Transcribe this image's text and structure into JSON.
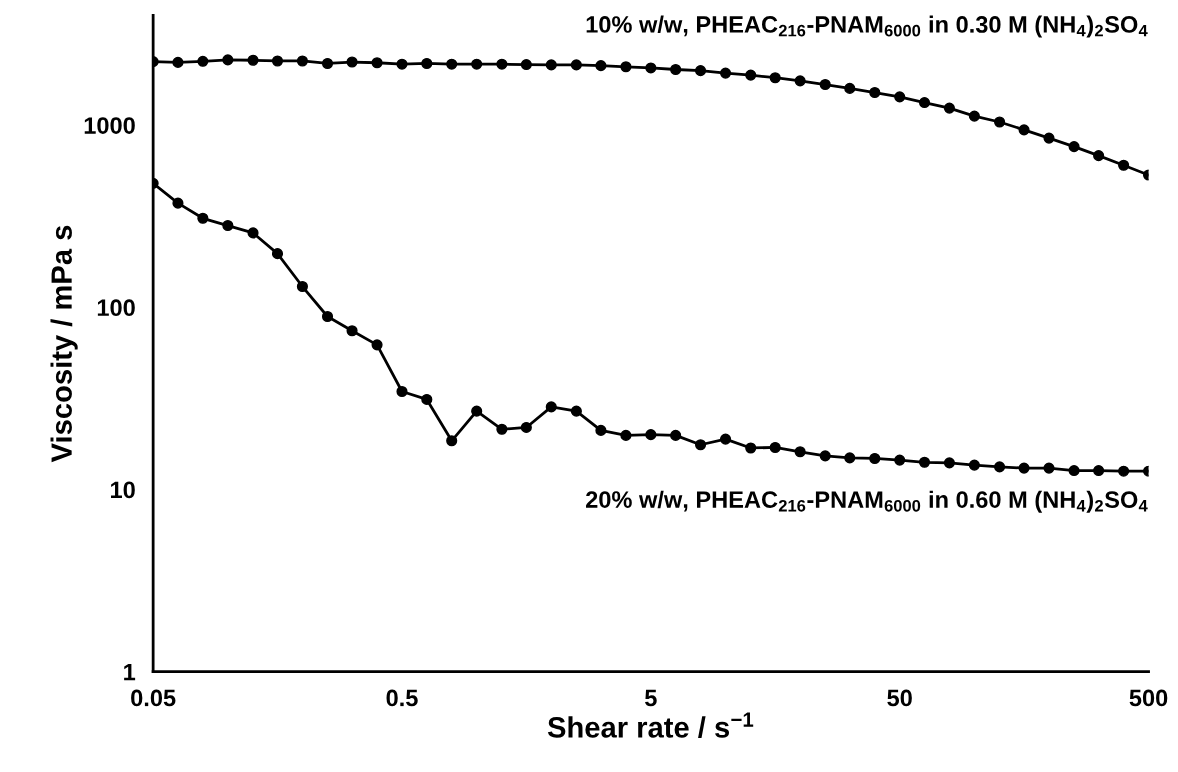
{
  "chart_data": {
    "type": "line",
    "xlabel": "Shear rate / s$^{−1}$",
    "ylabel": "Viscosity / mPa s",
    "log": "xy",
    "grid": false,
    "legend": false,
    "marker": "circle",
    "line_style": "solid",
    "xlim": [
      0.05,
      500
    ],
    "xticks": [
      0.05,
      0.5,
      5,
      50,
      500
    ],
    "ylim": [
      1,
      4000
    ],
    "yticks": [
      1,
      10,
      100,
      1000
    ],
    "x": [
      0.05,
      0.0629,
      0.0792,
      0.0998,
      0.126,
      0.158,
      0.199,
      0.251,
      0.315,
      0.397,
      0.5,
      0.629,
      0.792,
      0.998,
      1.26,
      1.58,
      1.99,
      2.51,
      3.15,
      3.97,
      5,
      6.29,
      7.92,
      9.98,
      12.6,
      15.8,
      19.9,
      25.1,
      31.5,
      39.7,
      50,
      62.9,
      79.2,
      99.8,
      126,
      158,
      199,
      251,
      315,
      397,
      500
    ],
    "series": [
      {
        "name": "10% w/w, PHEAC$_{216}$-PNAM$_{6000}$ in 0.30 M (NH$_{4}$)$_{2}$SO$_{4}$",
        "color": "#000000",
        "values": [
          2230,
          2210,
          2240,
          2280,
          2270,
          2250,
          2250,
          2180,
          2220,
          2200,
          2160,
          2180,
          2160,
          2160,
          2160,
          2150,
          2140,
          2140,
          2120,
          2090,
          2060,
          2020,
          1990,
          1930,
          1880,
          1820,
          1750,
          1670,
          1590,
          1510,
          1430,
          1330,
          1240,
          1120,
          1040,
          942,
          849,
          762,
          680,
          602,
          532
        ]
      },
      {
        "name": "20% w/w, PHEAC$_{216}$-PNAM$_{6000}$ in 0.60 M (NH$_{4}$)$_{2}$SO$_{4}$",
        "color": "#000000",
        "values": [
          479,
          373,
          308,
          281,
          256,
          197,
          130,
          89,
          74.3,
          62.2,
          34.5,
          31.2,
          18.5,
          26.9,
          21.4,
          21.9,
          28.4,
          26.9,
          21.1,
          19.8,
          20.0,
          19.8,
          17.6,
          18.9,
          16.9,
          17.0,
          16.1,
          15.3,
          14.9,
          14.8,
          14.5,
          14.1,
          14.0,
          13.6,
          13.3,
          13.1,
          13.1,
          12.7,
          12.7,
          12.6,
          12.6
        ]
      }
    ]
  }
}
